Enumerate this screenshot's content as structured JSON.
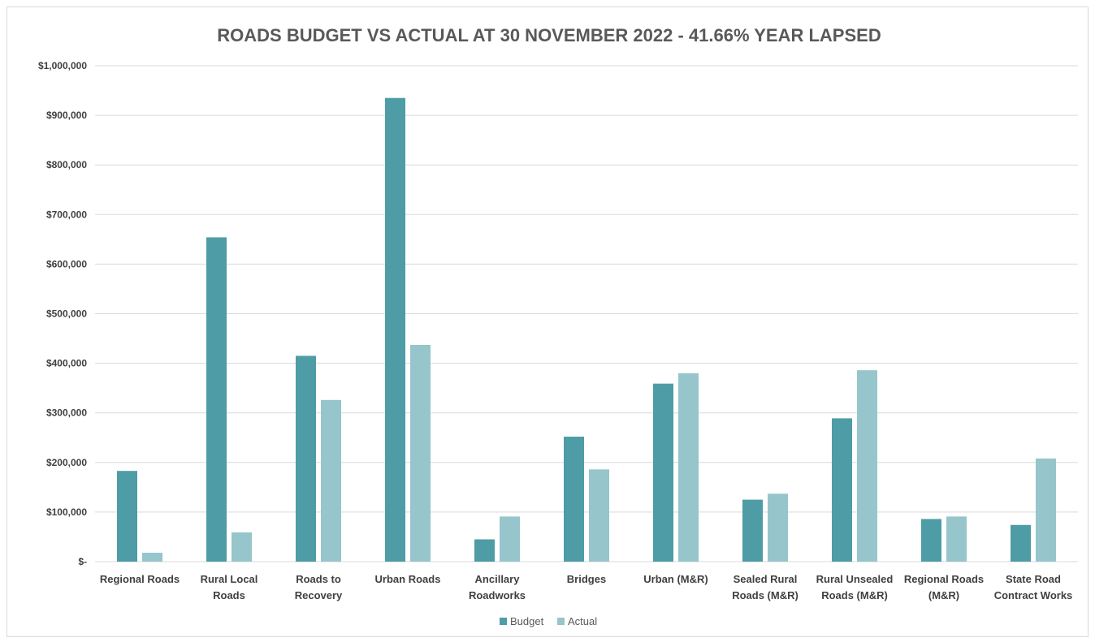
{
  "chart_data": {
    "type": "bar",
    "title": "ROADS BUDGET VS ACTUAL AT 30 NOVEMBER 2022 - 41.66% YEAR LAPSED",
    "xlabel": "",
    "ylabel": "",
    "ylim": [
      0,
      1000000
    ],
    "yticks": [
      0,
      100000,
      200000,
      300000,
      400000,
      500000,
      600000,
      700000,
      800000,
      900000,
      1000000
    ],
    "ytick_labels": [
      "$-",
      "$100,000",
      "$200,000",
      "$300,000",
      "$400,000",
      "$500,000",
      "$600,000",
      "$700,000",
      "$800,000",
      "$900,000",
      "$1,000,000"
    ],
    "grid": true,
    "legend_position": "bottom",
    "categories": [
      [
        "Regional Roads"
      ],
      [
        "Rural Local",
        "Roads"
      ],
      [
        "Roads to",
        "Recovery"
      ],
      [
        "Urban Roads"
      ],
      [
        "Ancillary",
        "Roadworks"
      ],
      [
        "Bridges"
      ],
      [
        "Urban (M&R)"
      ],
      [
        "Sealed Rural",
        "Roads (M&R)"
      ],
      [
        "Rural Unsealed",
        "Roads (M&R)"
      ],
      [
        "Regional Roads",
        "(M&R)"
      ],
      [
        "State Road",
        "Contract Works"
      ]
    ],
    "series": [
      {
        "name": "Budget",
        "color": "#4e9ca5",
        "values": [
          183000,
          654000,
          415000,
          935000,
          45000,
          252000,
          359000,
          125000,
          289000,
          86000,
          74000
        ]
      },
      {
        "name": "Actual",
        "color": "#96c5cb",
        "values": [
          18000,
          59000,
          326000,
          437000,
          91000,
          186000,
          380000,
          137000,
          386000,
          91000,
          208000
        ]
      }
    ]
  }
}
